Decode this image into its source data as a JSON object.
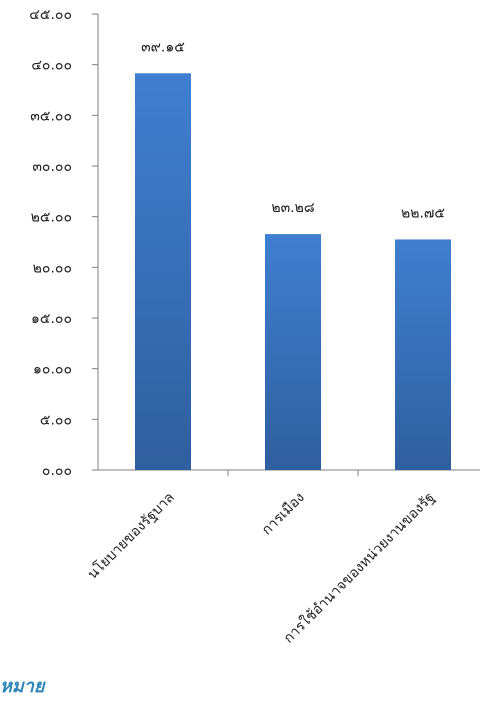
{
  "chart_data": {
    "type": "bar",
    "categories": [
      "นโยบายของรัฐบาล",
      "การเมือง",
      "การใช้อำนาจของหน่วยงานของรัฐ"
    ],
    "values": [
      39.15,
      23.28,
      22.75
    ],
    "value_labels": [
      "๓๙.๑๕",
      "๒๓.๒๘",
      "๒๒.๗๕"
    ],
    "ylim": [
      0,
      45
    ],
    "yticks": [
      0,
      5,
      10,
      15,
      20,
      25,
      30,
      35,
      40,
      45
    ],
    "ytick_labels": [
      "๐.๐๐",
      "๕.๐๐",
      "๑๐.๐๐",
      "๑๕.๐๐",
      "๒๐.๐๐",
      "๒๕.๐๐",
      "๓๐.๐๐",
      "๓๕.๐๐",
      "๔๐.๐๐",
      "๔๕.๐๐"
    ],
    "title": "",
    "xlabel": "",
    "ylabel": "",
    "grid": false,
    "legend": false,
    "bar_color_top": "#3f7fd0",
    "bar_color_bottom": "#2f5f9f"
  },
  "footer": {
    "text": "หมาย"
  },
  "colors": {
    "axis": "#7f7f7f",
    "text": "#222222",
    "footer": "#2f86b8"
  }
}
